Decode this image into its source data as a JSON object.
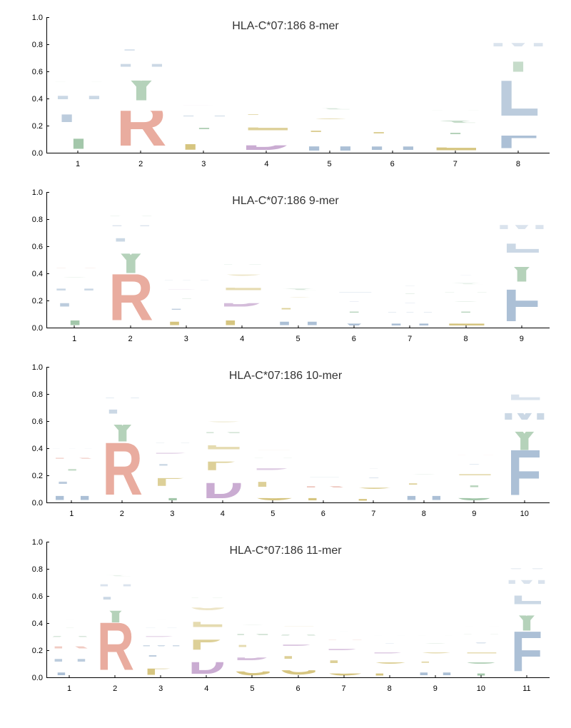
{
  "background_color": "#ffffff",
  "ylim": [
    0,
    1.0
  ],
  "yticks": [
    0.0,
    0.2,
    0.4,
    0.6,
    0.8,
    1.0
  ],
  "title_fontsize": 16,
  "tick_fontsize": 11,
  "axis_color": "#000000",
  "aa_colors": {
    "A": "#9fc5a6",
    "C": "#e8b4a8",
    "D": "#c8a8d0",
    "E": "#d4c27a",
    "F": "#a8bdd4",
    "G": "#d4c27a",
    "H": "#a8bdd4",
    "I": "#a8bdd4",
    "K": "#e8b4a8",
    "L": "#a8bdd4",
    "M": "#a8bdd4",
    "N": "#9fc5a6",
    "P": "#d4c27a",
    "Q": "#9fc5a6",
    "R": "#e8a89a",
    "S": "#9fc5a6",
    "T": "#9fc5a6",
    "V": "#a8bdd4",
    "W": "#a8bdd4",
    "Y": "#9fc5a6"
  },
  "panels": [
    {
      "title": "HLA-C*07:186 8-mer",
      "positions": 8,
      "columns": [
        [
          [
            "Y",
            0.2
          ],
          [
            "F",
            0.18
          ],
          [
            "H",
            0.13
          ],
          [
            "A",
            0.07
          ],
          [
            "M",
            0.06
          ],
          [
            "V",
            0.05
          ],
          [
            "R",
            0.05
          ],
          [
            "I",
            0.04
          ],
          [
            "S",
            0.03
          ],
          [
            "L",
            0.03
          ]
        ],
        [
          [
            "R",
            0.35
          ],
          [
            "Y",
            0.27
          ],
          [
            "H",
            0.12
          ],
          [
            "F",
            0.1
          ],
          [
            "A",
            0.05
          ]
        ],
        [
          [
            "P",
            0.16
          ],
          [
            "Y",
            0.1
          ],
          [
            "H",
            0.08
          ],
          [
            "D",
            0.07
          ],
          [
            "N",
            0.06
          ],
          [
            "G",
            0.05
          ],
          [
            "W",
            0.05
          ],
          [
            "I",
            0.04
          ],
          [
            "V",
            0.04
          ]
        ],
        [
          [
            "D",
            0.15
          ],
          [
            "E",
            0.12
          ],
          [
            "P",
            0.08
          ],
          [
            "G",
            0.06
          ],
          [
            "L",
            0.05
          ],
          [
            "K",
            0.05
          ]
        ],
        [
          [
            "H",
            0.14
          ],
          [
            "P",
            0.1
          ],
          [
            "G",
            0.08
          ],
          [
            "Q",
            0.06
          ],
          [
            "L",
            0.05
          ],
          [
            "E",
            0.05
          ],
          [
            "T",
            0.04
          ]
        ],
        [
          [
            "H",
            0.13
          ],
          [
            "P",
            0.1
          ],
          [
            "K",
            0.06
          ],
          [
            "A",
            0.06
          ],
          [
            "V",
            0.05
          ],
          [
            "R",
            0.05
          ]
        ],
        [
          [
            "E",
            0.12
          ],
          [
            "T",
            0.1
          ],
          [
            "Q",
            0.08
          ],
          [
            "A",
            0.07
          ],
          [
            "S",
            0.06
          ],
          [
            "K",
            0.05
          ],
          [
            "V",
            0.05
          ]
        ],
        [
          [
            "F",
            0.22
          ],
          [
            "L",
            0.35
          ],
          [
            "Y",
            0.2
          ],
          [
            "M",
            0.13
          ]
        ]
      ]
    },
    {
      "title": "HLA-C*07:186 9-mer",
      "positions": 9,
      "columns": [
        [
          [
            "Y",
            0.14
          ],
          [
            "F",
            0.12
          ],
          [
            "H",
            0.1
          ],
          [
            "S",
            0.07
          ],
          [
            "R",
            0.06
          ],
          [
            "A",
            0.05
          ],
          [
            "V",
            0.04
          ]
        ],
        [
          [
            "R",
            0.37
          ],
          [
            "Y",
            0.25
          ],
          [
            "F",
            0.12
          ],
          [
            "H",
            0.08
          ],
          [
            "A",
            0.06
          ]
        ],
        [
          [
            "P",
            0.12
          ],
          [
            "F",
            0.08
          ],
          [
            "Y",
            0.07
          ],
          [
            "D",
            0.07
          ],
          [
            "M",
            0.06
          ],
          [
            "W",
            0.05
          ],
          [
            "V",
            0.05
          ]
        ],
        [
          [
            "P",
            0.14
          ],
          [
            "D",
            0.12
          ],
          [
            "E",
            0.11
          ],
          [
            "G",
            0.09
          ],
          [
            "N",
            0.06
          ]
        ],
        [
          [
            "H",
            0.12
          ],
          [
            "P",
            0.09
          ],
          [
            "G",
            0.07
          ],
          [
            "Q",
            0.06
          ],
          [
            "K",
            0.05
          ],
          [
            "L",
            0.05
          ]
        ],
        [
          [
            "V",
            0.1
          ],
          [
            "T",
            0.08
          ],
          [
            "I",
            0.07
          ],
          [
            "L",
            0.06
          ],
          [
            "G",
            0.05
          ],
          [
            "H",
            0.05
          ]
        ],
        [
          [
            "H",
            0.1
          ],
          [
            "M",
            0.07
          ],
          [
            "V",
            0.07
          ],
          [
            "T",
            0.06
          ],
          [
            "I",
            0.06
          ],
          [
            "L",
            0.05
          ]
        ],
        [
          [
            "E",
            0.1
          ],
          [
            "T",
            0.08
          ],
          [
            "S",
            0.07
          ],
          [
            "A",
            0.07
          ],
          [
            "Q",
            0.06
          ],
          [
            "V",
            0.06
          ],
          [
            "L",
            0.05
          ]
        ],
        [
          [
            "F",
            0.31
          ],
          [
            "Y",
            0.22
          ],
          [
            "L",
            0.18
          ],
          [
            "M",
            0.13
          ]
        ]
      ]
    },
    {
      "title": "HLA-C*07:186 10-mer",
      "positions": 10,
      "columns": [
        [
          [
            "H",
            0.12
          ],
          [
            "F",
            0.1
          ],
          [
            "Y",
            0.09
          ],
          [
            "R",
            0.08
          ],
          [
            "M",
            0.06
          ],
          [
            "A",
            0.05
          ],
          [
            "S",
            0.05
          ]
        ],
        [
          [
            "R",
            0.42
          ],
          [
            "Y",
            0.22
          ],
          [
            "F",
            0.12
          ],
          [
            "H",
            0.07
          ],
          [
            "W",
            0.05
          ]
        ],
        [
          [
            "Y",
            0.1
          ],
          [
            "P",
            0.16
          ],
          [
            "F",
            0.09
          ],
          [
            "D",
            0.08
          ],
          [
            "H",
            0.07
          ],
          [
            "N",
            0.05
          ]
        ],
        [
          [
            "D",
            0.21
          ],
          [
            "P",
            0.17
          ],
          [
            "E",
            0.12
          ],
          [
            "N",
            0.08
          ],
          [
            "G",
            0.08
          ]
        ],
        [
          [
            "G",
            0.1
          ],
          [
            "P",
            0.13
          ],
          [
            "D",
            0.09
          ],
          [
            "A",
            0.06
          ],
          [
            "E",
            0.06
          ]
        ],
        [
          [
            "P",
            0.1
          ],
          [
            "K",
            0.08
          ],
          [
            "L",
            0.06
          ],
          [
            "H",
            0.05
          ],
          [
            "V",
            0.05
          ]
        ],
        [
          [
            "P",
            0.09
          ],
          [
            "G",
            0.08
          ],
          [
            "V",
            0.07
          ],
          [
            "I",
            0.06
          ],
          [
            "T",
            0.05
          ]
        ],
        [
          [
            "H",
            0.12
          ],
          [
            "P",
            0.08
          ],
          [
            "S",
            0.06
          ],
          [
            "A",
            0.05
          ],
          [
            "G",
            0.05
          ]
        ],
        [
          [
            "S",
            0.1
          ],
          [
            "T",
            0.09
          ],
          [
            "E",
            0.08
          ],
          [
            "V",
            0.07
          ],
          [
            "K",
            0.06
          ],
          [
            "Y",
            0.05
          ]
        ],
        [
          [
            "F",
            0.36
          ],
          [
            "Y",
            0.23
          ],
          [
            "M",
            0.15
          ],
          [
            "L",
            0.14
          ]
        ]
      ]
    },
    {
      "title": "HLA-C*07:186 11-mer",
      "positions": 11,
      "columns": [
        [
          [
            "F",
            0.1
          ],
          [
            "H",
            0.1
          ],
          [
            "R",
            0.09
          ],
          [
            "A",
            0.07
          ],
          [
            "Y",
            0.06
          ],
          [
            "V",
            0.05
          ]
        ],
        [
          [
            "R",
            0.38
          ],
          [
            "Y",
            0.18
          ],
          [
            "F",
            0.1
          ],
          [
            "H",
            0.09
          ],
          [
            "Q",
            0.05
          ]
        ],
        [
          [
            "P",
            0.14
          ],
          [
            "F",
            0.08
          ],
          [
            "M",
            0.07
          ],
          [
            "D",
            0.07
          ],
          [
            "W",
            0.06
          ],
          [
            "V",
            0.05
          ]
        ],
        [
          [
            "D",
            0.18
          ],
          [
            "P",
            0.17
          ],
          [
            "E",
            0.13
          ],
          [
            "G",
            0.1
          ],
          [
            "N",
            0.06
          ]
        ],
        [
          [
            "G",
            0.11
          ],
          [
            "D",
            0.1
          ],
          [
            "P",
            0.09
          ],
          [
            "N",
            0.08
          ],
          [
            "S",
            0.06
          ]
        ],
        [
          [
            "G",
            0.12
          ],
          [
            "P",
            0.1
          ],
          [
            "D",
            0.08
          ],
          [
            "A",
            0.07
          ],
          [
            "E",
            0.06
          ]
        ],
        [
          [
            "G",
            0.09
          ],
          [
            "P",
            0.1
          ],
          [
            "D",
            0.08
          ],
          [
            "K",
            0.06
          ],
          [
            "V",
            0.05
          ]
        ],
        [
          [
            "P",
            0.09
          ],
          [
            "G",
            0.08
          ],
          [
            "D",
            0.07
          ],
          [
            "V",
            0.06
          ],
          [
            "H",
            0.05
          ]
        ],
        [
          [
            "H",
            0.1
          ],
          [
            "P",
            0.07
          ],
          [
            "G",
            0.07
          ],
          [
            "S",
            0.06
          ],
          [
            "A",
            0.05
          ]
        ],
        [
          [
            "T",
            0.09
          ],
          [
            "S",
            0.08
          ],
          [
            "E",
            0.07
          ],
          [
            "V",
            0.07
          ],
          [
            "A",
            0.06
          ],
          [
            "K",
            0.05
          ]
        ],
        [
          [
            "F",
            0.32
          ],
          [
            "Y",
            0.2
          ],
          [
            "L",
            0.16
          ],
          [
            "M",
            0.11
          ],
          [
            "W",
            0.07
          ]
        ]
      ]
    }
  ]
}
